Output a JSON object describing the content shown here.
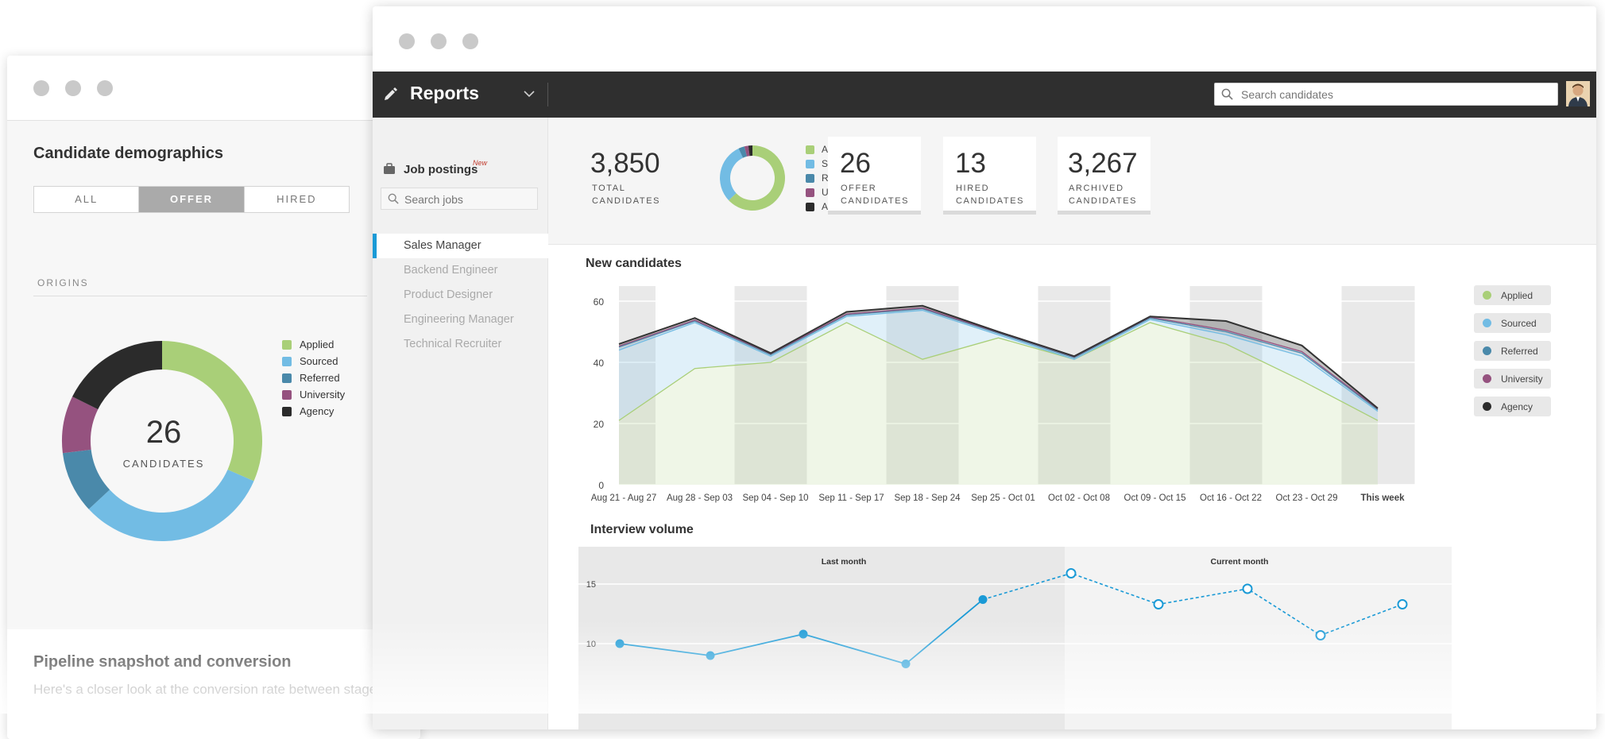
{
  "back_window": {
    "title": "Candidate demographics",
    "segments": [
      {
        "label": "ALL",
        "active": false
      },
      {
        "label": "OFFER",
        "active": true
      },
      {
        "label": "HIRED",
        "active": false
      }
    ],
    "origins_label": "ORIGINS",
    "donut_total": "26",
    "donut_caption": "CANDIDATES",
    "legend": [
      {
        "label": "Applied",
        "color": "#a9cf78"
      },
      {
        "label": "Sourced",
        "color": "#72bce4"
      },
      {
        "label": "Referred",
        "color": "#4a89aa"
      },
      {
        "label": "University",
        "color": "#95527f"
      },
      {
        "label": "Agency",
        "color": "#2b2b2b"
      }
    ],
    "pipeline_title": "Pipeline snapshot and conversion",
    "pipeline_subtitle": "Here's a closer look at the conversion rate between stages."
  },
  "app": {
    "title": "Reports",
    "search_placeholder": "Search candidates"
  },
  "sidebar": {
    "title": "Job postings",
    "new_badge": "New",
    "search_placeholder": "Search jobs",
    "jobs": [
      {
        "label": "Sales Manager",
        "active": true
      },
      {
        "label": "Backend Engineer",
        "active": false
      },
      {
        "label": "Product Designer",
        "active": false
      },
      {
        "label": "Engineering Manager",
        "active": false
      },
      {
        "label": "Technical Recruiter",
        "active": false
      }
    ]
  },
  "kpis": {
    "total": {
      "value": "3,850",
      "label_1": "TOTAL",
      "label_2": "CANDIDATES"
    },
    "offer": {
      "value": "26",
      "label_1": "OFFER",
      "label_2": "CANDIDATES"
    },
    "hired": {
      "value": "13",
      "label_1": "HIRED",
      "label_2": "CANDIDATES"
    },
    "archived": {
      "value": "3,267",
      "label_1": "ARCHIVED",
      "label_2": "CANDIDATES"
    },
    "legend": [
      "Applied",
      "Sourced",
      "Referred",
      "University",
      "Agency"
    ]
  },
  "chart_data": [
    {
      "type": "area",
      "title": "New candidates",
      "stacked": true,
      "categories": [
        "Aug 21 - Aug 27",
        "Aug 28 - Sep 03",
        "Sep 04 - Sep 10",
        "Sep 11 - Sep 17",
        "Sep 18 - Sep 24",
        "Sep 25 - Oct 01",
        "Oct 02 - Oct 08",
        "Oct 09 - Oct 15",
        "Oct 16 - Oct 22",
        "Oct 23 - Oct 29",
        "This week"
      ],
      "yticks": [
        0,
        20,
        40,
        60
      ],
      "ylim": [
        0,
        60
      ],
      "series": [
        {
          "name": "Applied",
          "color": "#a9cf78",
          "values": [
            21,
            38,
            40,
            53,
            41,
            48,
            41,
            53,
            46,
            34,
            21
          ]
        },
        {
          "name": "Sourced",
          "color": "#72bce4",
          "values": [
            23,
            15,
            2,
            2,
            16,
            1,
            0,
            1,
            3,
            8,
            3
          ]
        },
        {
          "name": "Referred",
          "color": "#4a89aa",
          "values": [
            1,
            0.5,
            0.5,
            0.5,
            0.5,
            0.5,
            0.5,
            0.5,
            1,
            1,
            0.5
          ]
        },
        {
          "name": "University",
          "color": "#95527f",
          "values": [
            0.3,
            0.3,
            0.3,
            0.3,
            0.3,
            0.3,
            0.3,
            0.3,
            0.5,
            0.5,
            0.3
          ]
        },
        {
          "name": "Agency",
          "color": "#2b2b2b",
          "values": [
            0.7,
            0.7,
            0.2,
            0.7,
            0.7,
            0.2,
            0.2,
            0.2,
            3,
            2,
            0.2
          ]
        }
      ],
      "legend": "right"
    },
    {
      "type": "line",
      "title": "Interview volume",
      "sections": [
        "Last month",
        "Current month"
      ],
      "yticks": [
        10,
        15
      ],
      "series": [
        {
          "name": "Last month",
          "color": "#1a9ad6",
          "values": [
            10,
            9,
            10.8,
            8.3,
            13.7
          ]
        },
        {
          "name": "Current month",
          "color": "#1a9ad6",
          "style": "dashed",
          "values": [
            13.7,
            15.9,
            13.3,
            14.6,
            10.7,
            13.3
          ]
        }
      ]
    }
  ]
}
